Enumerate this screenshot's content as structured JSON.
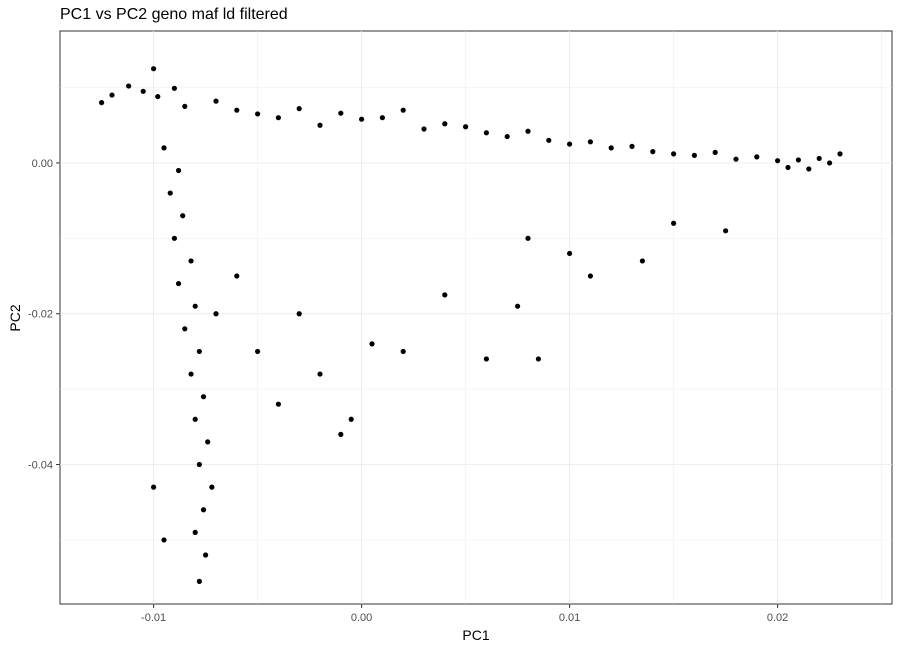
{
  "chart_data": {
    "type": "scatter",
    "title": "PC1 vs PC2 geno maf ld filtered",
    "xlabel": "PC1",
    "ylabel": "PC2",
    "xlim": [
      -0.0145,
      0.0255
    ],
    "ylim": [
      -0.0585,
      0.0175
    ],
    "xticks": [
      -0.01,
      0.0,
      0.01,
      0.02
    ],
    "xtick_labels": [
      "-0.01",
      "0.00",
      "0.01",
      "0.02"
    ],
    "yticks": [
      0.0,
      -0.02,
      -0.04
    ],
    "ytick_labels": [
      "0.00",
      "-0.02",
      "-0.04"
    ],
    "grid": true,
    "point_color": "#000000",
    "series": [
      {
        "values": [
          {
            "x": -0.0105,
            "y": 0.0095
          },
          {
            "x": -0.0112,
            "y": 0.0102
          },
          {
            "x": -0.0098,
            "y": 0.0088
          },
          {
            "x": -0.012,
            "y": 0.009
          },
          {
            "x": -0.009,
            "y": 0.0099
          },
          {
            "x": -0.01,
            "y": 0.0125
          },
          {
            "x": -0.0085,
            "y": 0.0075
          },
          {
            "x": -0.0125,
            "y": 0.008
          },
          {
            "x": -0.007,
            "y": 0.0082
          },
          {
            "x": -0.006,
            "y": 0.007
          },
          {
            "x": -0.005,
            "y": 0.0065
          },
          {
            "x": -0.004,
            "y": 0.006
          },
          {
            "x": -0.003,
            "y": 0.0072
          },
          {
            "x": -0.002,
            "y": 0.005
          },
          {
            "x": -0.001,
            "y": 0.0066
          },
          {
            "x": 0.0,
            "y": 0.0058
          },
          {
            "x": 0.001,
            "y": 0.006
          },
          {
            "x": 0.002,
            "y": 0.007
          },
          {
            "x": 0.003,
            "y": 0.0045
          },
          {
            "x": 0.004,
            "y": 0.0052
          },
          {
            "x": 0.005,
            "y": 0.0048
          },
          {
            "x": 0.006,
            "y": 0.004
          },
          {
            "x": 0.007,
            "y": 0.0035
          },
          {
            "x": 0.008,
            "y": 0.0042
          },
          {
            "x": 0.009,
            "y": 0.003
          },
          {
            "x": 0.01,
            "y": 0.0025
          },
          {
            "x": 0.011,
            "y": 0.0028
          },
          {
            "x": 0.012,
            "y": 0.002
          },
          {
            "x": 0.013,
            "y": 0.0022
          },
          {
            "x": 0.014,
            "y": 0.0015
          },
          {
            "x": 0.015,
            "y": 0.0012
          },
          {
            "x": 0.016,
            "y": 0.001
          },
          {
            "x": 0.017,
            "y": 0.0014
          },
          {
            "x": 0.018,
            "y": 0.0005
          },
          {
            "x": 0.019,
            "y": 0.0008
          },
          {
            "x": 0.02,
            "y": 0.0003
          },
          {
            "x": 0.021,
            "y": 0.0004
          },
          {
            "x": 0.022,
            "y": 0.0006
          },
          {
            "x": 0.023,
            "y": 0.0012
          },
          {
            "x": 0.0225,
            "y": 0.0
          },
          {
            "x": 0.0215,
            "y": -0.0008
          },
          {
            "x": 0.0205,
            "y": -0.0006
          },
          {
            "x": -0.0095,
            "y": 0.002
          },
          {
            "x": -0.0088,
            "y": -0.001
          },
          {
            "x": -0.0092,
            "y": -0.004
          },
          {
            "x": -0.0086,
            "y": -0.007
          },
          {
            "x": -0.009,
            "y": -0.01
          },
          {
            "x": -0.0082,
            "y": -0.013
          },
          {
            "x": -0.0088,
            "y": -0.016
          },
          {
            "x": -0.008,
            "y": -0.019
          },
          {
            "x": -0.0085,
            "y": -0.022
          },
          {
            "x": -0.0078,
            "y": -0.025
          },
          {
            "x": -0.0082,
            "y": -0.028
          },
          {
            "x": -0.0076,
            "y": -0.031
          },
          {
            "x": -0.008,
            "y": -0.034
          },
          {
            "x": -0.0074,
            "y": -0.037
          },
          {
            "x": -0.0078,
            "y": -0.04
          },
          {
            "x": -0.0072,
            "y": -0.043
          },
          {
            "x": -0.0076,
            "y": -0.046
          },
          {
            "x": -0.008,
            "y": -0.049
          },
          {
            "x": -0.0075,
            "y": -0.052
          },
          {
            "x": -0.0078,
            "y": -0.0555
          },
          {
            "x": -0.0095,
            "y": -0.05
          },
          {
            "x": -0.01,
            "y": -0.043
          },
          {
            "x": -0.007,
            "y": -0.02
          },
          {
            "x": -0.006,
            "y": -0.015
          },
          {
            "x": -0.005,
            "y": -0.025
          },
          {
            "x": -0.004,
            "y": -0.032
          },
          {
            "x": -0.003,
            "y": -0.02
          },
          {
            "x": -0.002,
            "y": -0.028
          },
          {
            "x": -0.001,
            "y": -0.036
          },
          {
            "x": -0.0005,
            "y": -0.034
          },
          {
            "x": 0.0005,
            "y": -0.024
          },
          {
            "x": 0.002,
            "y": -0.025
          },
          {
            "x": 0.004,
            "y": -0.0175
          },
          {
            "x": 0.006,
            "y": -0.026
          },
          {
            "x": 0.0075,
            "y": -0.019
          },
          {
            "x": 0.0085,
            "y": -0.026
          },
          {
            "x": 0.01,
            "y": -0.012
          },
          {
            "x": 0.011,
            "y": -0.015
          },
          {
            "x": 0.0135,
            "y": -0.013
          },
          {
            "x": 0.015,
            "y": -0.008
          },
          {
            "x": 0.0175,
            "y": -0.009
          },
          {
            "x": 0.008,
            "y": -0.01
          }
        ]
      }
    ]
  }
}
